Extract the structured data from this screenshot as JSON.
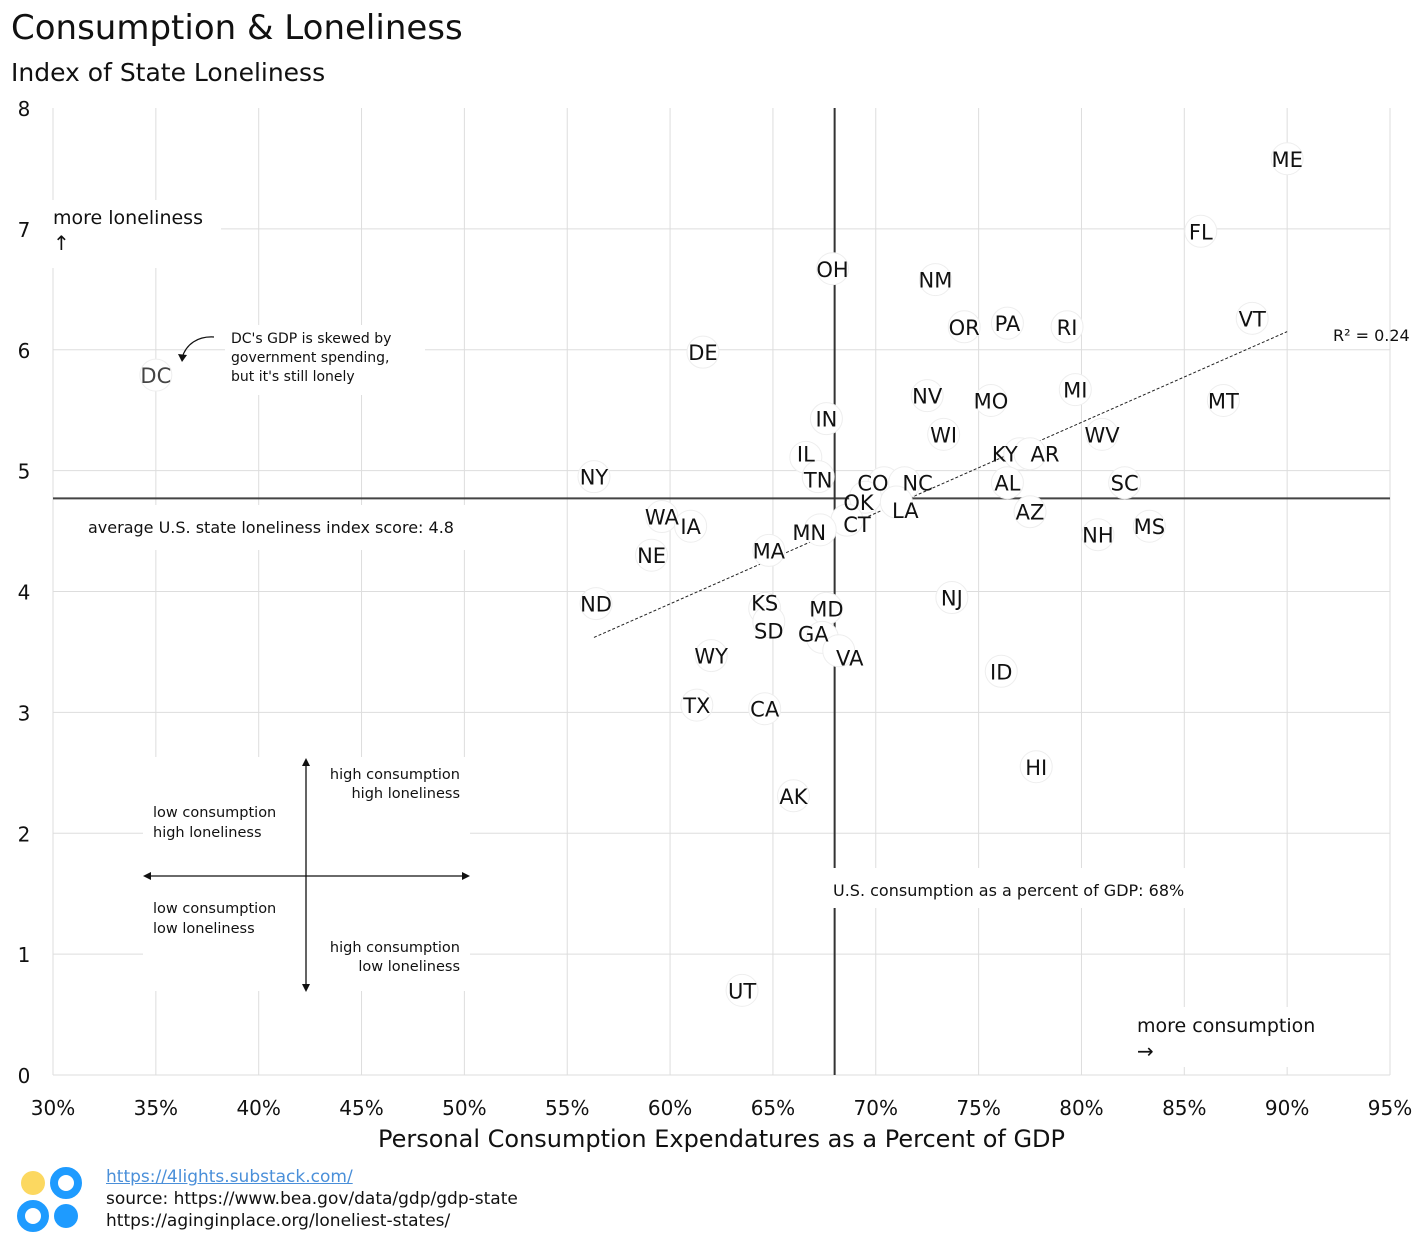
{
  "header": {
    "title": "Consumption & Loneliness",
    "subtitle": "Index of State Loneliness"
  },
  "footer": {
    "link": "https://4lights.substack.com/",
    "source1": "source: https://www.bea.gov/data/gdp/gdp-state",
    "source2": "https://aginginplace.org/loneliest-states/"
  },
  "colors": {
    "logo_yellow": "#fcd860",
    "logo_blue": "#1e9bff",
    "grid": "#dddddd",
    "text": "#111111"
  },
  "chart_data": {
    "type": "scatter",
    "title": "Consumption & Loneliness",
    "subtitle": "Index of State Loneliness",
    "xlabel": "Personal Consumption Expendatures as a Percent of GDP",
    "ylabel": "",
    "xlim": [
      30,
      95
    ],
    "ylim": [
      0,
      8
    ],
    "xticks": [
      "30%",
      "35%",
      "40%",
      "45%",
      "50%",
      "55%",
      "60%",
      "65%",
      "70%",
      "75%",
      "80%",
      "85%",
      "90%",
      "95%"
    ],
    "yticks": [
      "0",
      "1",
      "2",
      "3",
      "4",
      "5",
      "6",
      "7",
      "8"
    ],
    "grid": true,
    "points": [
      {
        "label": "ME",
        "x": 90.0,
        "y": 7.58
      },
      {
        "label": "FL",
        "x": 85.8,
        "y": 6.98
      },
      {
        "label": "OH",
        "x": 67.9,
        "y": 6.67
      },
      {
        "label": "NM",
        "x": 72.9,
        "y": 6.58
      },
      {
        "label": "OR",
        "x": 74.3,
        "y": 6.19
      },
      {
        "label": "PA",
        "x": 76.4,
        "y": 6.22
      },
      {
        "label": "RI",
        "x": 79.3,
        "y": 6.19
      },
      {
        "label": "VT",
        "x": 88.3,
        "y": 6.26
      },
      {
        "label": "DE",
        "x": 61.6,
        "y": 5.98
      },
      {
        "label": "DC",
        "x": 35.0,
        "y": 5.79
      },
      {
        "label": "NV",
        "x": 72.5,
        "y": 5.62
      },
      {
        "label": "MO",
        "x": 75.6,
        "y": 5.58
      },
      {
        "label": "MI",
        "x": 79.7,
        "y": 5.67
      },
      {
        "label": "MT",
        "x": 86.9,
        "y": 5.58
      },
      {
        "label": "IN",
        "x": 67.6,
        "y": 5.43
      },
      {
        "label": "WI",
        "x": 73.3,
        "y": 5.3
      },
      {
        "label": "KY",
        "x": 77.0,
        "y": 5.14
      },
      {
        "label": "AR",
        "x": 77.5,
        "y": 5.14
      },
      {
        "label": "WV",
        "x": 81.0,
        "y": 5.3
      },
      {
        "label": "IL",
        "x": 66.6,
        "y": 5.11
      },
      {
        "label": "TN",
        "x": 67.2,
        "y": 4.95
      },
      {
        "label": "NY",
        "x": 56.3,
        "y": 4.95
      },
      {
        "label": "CO",
        "x": 70.4,
        "y": 4.9
      },
      {
        "label": "NC",
        "x": 71.4,
        "y": 4.9
      },
      {
        "label": "AL",
        "x": 76.4,
        "y": 4.9
      },
      {
        "label": "SC",
        "x": 82.1,
        "y": 4.9
      },
      {
        "label": "OK",
        "x": 69.5,
        "y": 4.78
      },
      {
        "label": "LA",
        "x": 71.0,
        "y": 4.74
      },
      {
        "label": "AZ",
        "x": 77.5,
        "y": 4.66
      },
      {
        "label": "WA",
        "x": 59.6,
        "y": 4.62
      },
      {
        "label": "IA",
        "x": 61.0,
        "y": 4.54
      },
      {
        "label": "CT",
        "x": 68.6,
        "y": 4.59
      },
      {
        "label": "MN",
        "x": 67.3,
        "y": 4.51
      },
      {
        "label": "NH",
        "x": 80.8,
        "y": 4.47
      },
      {
        "label": "MS",
        "x": 83.3,
        "y": 4.54
      },
      {
        "label": "NE",
        "x": 59.1,
        "y": 4.3
      },
      {
        "label": "MA",
        "x": 64.8,
        "y": 4.34
      },
      {
        "label": "ND",
        "x": 56.4,
        "y": 3.9
      },
      {
        "label": "KS",
        "x": 64.6,
        "y": 3.86
      },
      {
        "label": "SD",
        "x": 64.8,
        "y": 3.75
      },
      {
        "label": "MD",
        "x": 67.6,
        "y": 3.86
      },
      {
        "label": "NJ",
        "x": 73.7,
        "y": 3.95
      },
      {
        "label": "GA",
        "x": 67.4,
        "y": 3.62
      },
      {
        "label": "VA",
        "x": 68.2,
        "y": 3.51
      },
      {
        "label": "WY",
        "x": 62.0,
        "y": 3.47
      },
      {
        "label": "ID",
        "x": 76.1,
        "y": 3.34
      },
      {
        "label": "TX",
        "x": 61.3,
        "y": 3.06
      },
      {
        "label": "CA",
        "x": 64.6,
        "y": 3.03
      },
      {
        "label": "HI",
        "x": 77.8,
        "y": 2.55
      },
      {
        "label": "AK",
        "x": 66.0,
        "y": 2.31
      },
      {
        "label": "UT",
        "x": 63.5,
        "y": 0.7
      }
    ],
    "trendline": {
      "x": [
        56.3,
        90.0
      ],
      "y": [
        3.62,
        6.15
      ],
      "label": "R² = 0.24"
    },
    "reference_lines": {
      "avg_loneliness": {
        "y": 4.77,
        "label": "average U.S. state loneliness index score: 4.8"
      },
      "us_consumption": {
        "x": 68,
        "label": "U.S. consumption as a percent of GDP: 68%"
      }
    },
    "annotations": {
      "more_loneliness": "more loneliness",
      "up_arrow": "↑",
      "more_consumption": "more consumption",
      "right_arrow": "→",
      "dc_note": [
        "DC's GDP is skewed by",
        "government spending,",
        "but it's still lonely"
      ],
      "quadrants": {
        "top_left": [
          "low consumption",
          "high loneliness"
        ],
        "top_right": [
          "high consumption",
          "high loneliness"
        ],
        "bottom_left": [
          "low consumption",
          "low loneliness"
        ],
        "bottom_right": [
          "high consumption",
          "low  loneliness"
        ]
      }
    }
  }
}
